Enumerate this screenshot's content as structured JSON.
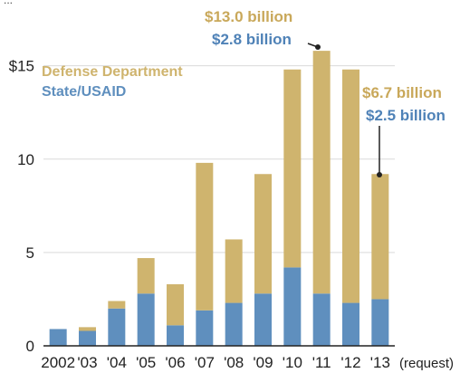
{
  "chart_data": {
    "type": "bar",
    "stacked": true,
    "top_label": "...",
    "categories": [
      "2002",
      "'03",
      "'04",
      "'05",
      "'06",
      "'07",
      "'08",
      "'09",
      "'10",
      "'11",
      "'12",
      "'13"
    ],
    "x_suffix": "(request)",
    "series": [
      {
        "name": "State/USAID",
        "color": "#5f8fbe",
        "values": [
          0.9,
          0.8,
          2.0,
          2.8,
          1.1,
          1.9,
          2.3,
          2.8,
          4.2,
          2.8,
          2.3,
          2.5
        ]
      },
      {
        "name": "Defense Department",
        "color": "#cfb46e",
        "values": [
          0.0,
          0.2,
          0.4,
          1.9,
          2.2,
          7.9,
          3.4,
          6.4,
          10.6,
          13.0,
          12.5,
          6.7
        ]
      }
    ],
    "ylim": [
      0,
      16
    ],
    "yticks": [
      0,
      5,
      10,
      15
    ],
    "ytick_labels": [
      "0",
      "5",
      "10",
      "$15"
    ],
    "legend_position": "top-left",
    "annotations": [
      {
        "category": "'11",
        "lines": [
          {
            "text": "$13.0 billion",
            "color": "#c9a85a"
          },
          {
            "text": "$2.8 billion",
            "color": "#4f82b7"
          }
        ]
      },
      {
        "category": "'13",
        "lines": [
          {
            "text": "$6.7 billion",
            "color": "#c9a85a"
          },
          {
            "text": "$2.5 billion",
            "color": "#4f82b7"
          }
        ]
      }
    ]
  }
}
